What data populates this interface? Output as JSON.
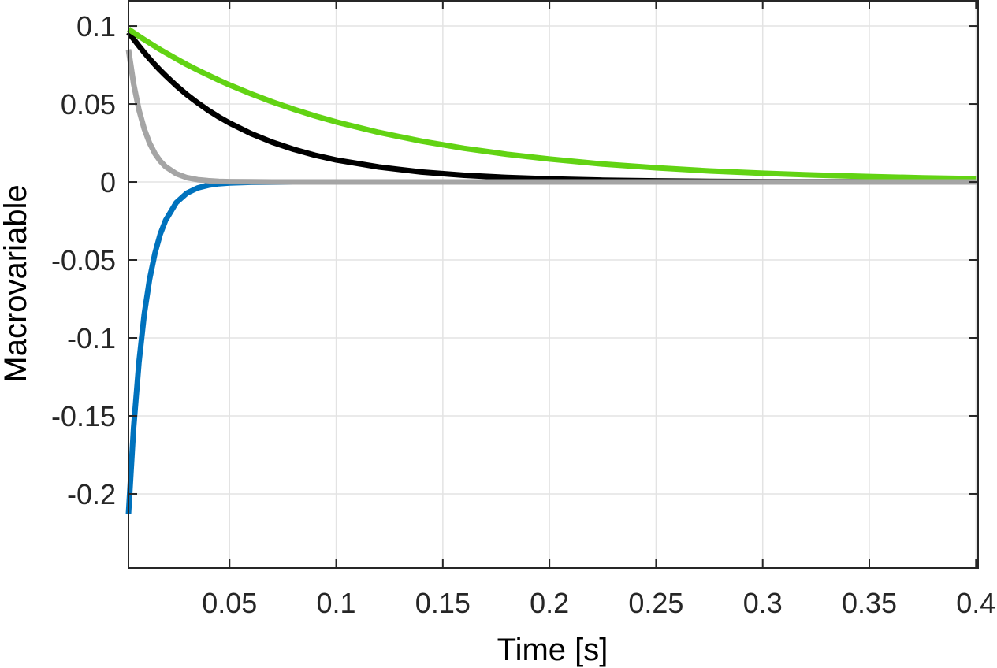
{
  "chart_data": {
    "type": "line",
    "title": "",
    "xlabel": "Time [s]",
    "ylabel": "Macrovariable",
    "xlim": [
      0.0026,
      0.401
    ],
    "ylim": [
      -0.2475,
      0.1167
    ],
    "grid": true,
    "legend": null,
    "xticks": [
      0.05,
      0.1,
      0.15,
      0.2,
      0.25,
      0.3,
      0.35,
      0.4
    ],
    "xtick_labels": [
      "0.05",
      "0.1",
      "0.15",
      "0.2",
      "0.25",
      "0.3",
      "0.35",
      "0.4"
    ],
    "yticks": [
      0.1,
      0.05,
      0,
      -0.05,
      -0.1,
      -0.15,
      -0.2
    ],
    "ytick_labels": [
      "0.1",
      "0.05",
      "0",
      "-0.05",
      "-0.1",
      "-0.15",
      "-0.2"
    ],
    "x": [
      0.0026,
      0.005,
      0.0075,
      0.01,
      0.0125,
      0.015,
      0.0175,
      0.02,
      0.025,
      0.03,
      0.035,
      0.04,
      0.045,
      0.05,
      0.06,
      0.07,
      0.08,
      0.09,
      0.1,
      0.12,
      0.14,
      0.16,
      0.18,
      0.2,
      0.225,
      0.25,
      0.275,
      0.3,
      0.325,
      0.35,
      0.375,
      0.4
    ],
    "series": [
      {
        "name": "green",
        "color": "#62d313",
        "values": [
          0.098,
          0.0958,
          0.0935,
          0.0913,
          0.0891,
          0.087,
          0.0849,
          0.0829,
          0.079,
          0.0753,
          0.0718,
          0.0685,
          0.0653,
          0.0622,
          0.0566,
          0.0514,
          0.0467,
          0.0424,
          0.0385,
          0.0318,
          0.0262,
          0.0216,
          0.0178,
          0.0147,
          0.0115,
          0.0091,
          0.0071,
          0.0056,
          0.0044,
          0.0035,
          0.0027,
          0.0021
        ]
      },
      {
        "name": "black",
        "color": "#000000",
        "values": [
          0.096,
          0.0916,
          0.0872,
          0.083,
          0.079,
          0.0752,
          0.0716,
          0.0682,
          0.0618,
          0.056,
          0.0508,
          0.046,
          0.0417,
          0.0378,
          0.0311,
          0.0255,
          0.021,
          0.0172,
          0.0141,
          0.0096,
          0.0064,
          0.0043,
          0.0029,
          0.002,
          0.0012,
          0.0007,
          0.0004,
          0.0002,
          0.0001,
          0.0001,
          0.0,
          0.0
        ]
      },
      {
        "name": "gray",
        "color": "#a5a5a5",
        "values": [
          0.085,
          0.063,
          0.0462,
          0.034,
          0.0249,
          0.0182,
          0.0134,
          0.0098,
          0.0053,
          0.0028,
          0.0015,
          0.0008,
          0.0004,
          0.0002,
          0.0001,
          0.0,
          0.0,
          0.0,
          0.0,
          0.0,
          0.0,
          0.0,
          0.0,
          0.0,
          0.0,
          0.0,
          0.0,
          0.0,
          0.0,
          0.0,
          0.0,
          0.0
        ]
      },
      {
        "name": "blue",
        "color": "#0072bd",
        "values": [
          -0.213,
          -0.1578,
          -0.1157,
          -0.0849,
          -0.0623,
          -0.0457,
          -0.0335,
          -0.0246,
          -0.0132,
          -0.0071,
          -0.0038,
          -0.0021,
          -0.0011,
          -0.0006,
          -0.0002,
          -0.0001,
          0.0,
          0.0,
          0.0,
          0.0,
          0.0,
          0.0,
          0.0,
          0.0,
          0.0,
          0.0,
          0.0,
          0.0,
          0.0,
          0.0,
          0.0,
          0.0
        ]
      }
    ],
    "style": {
      "axis_color": "#262626",
      "grid_color": "#e3e3e3",
      "line_width": 7
    }
  }
}
